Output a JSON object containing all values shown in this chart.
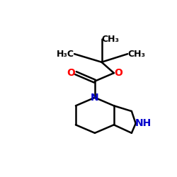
{
  "bg_color": "#ffffff",
  "bond_color": "#000000",
  "N_color": "#0000cc",
  "O_color": "#ff0000",
  "line_width": 1.8,
  "font_size": 10,
  "fig_size": [
    2.5,
    2.5
  ],
  "dpi": 100,
  "xlim": [
    0,
    10
  ],
  "ylim": [
    0,
    10
  ]
}
